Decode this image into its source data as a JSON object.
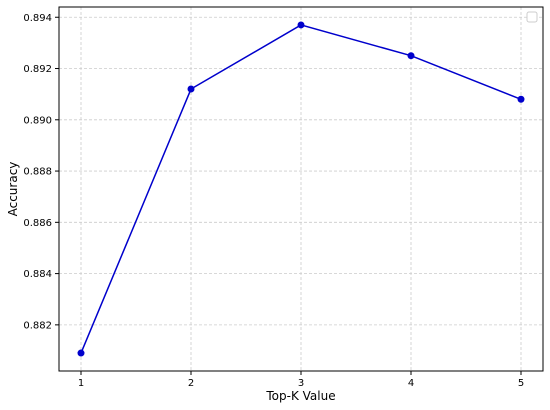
{
  "chart_data": {
    "type": "line",
    "title": "",
    "xlabel": "Top-K Value",
    "ylabel": "Accuracy",
    "x": [
      1,
      2,
      3,
      4,
      5
    ],
    "series": [
      {
        "values": [
          0.8809,
          0.8912,
          0.8937,
          0.8925,
          0.8908
        ],
        "color": "#0000cc",
        "marker": "circle"
      }
    ],
    "xlim": [
      0.8,
      5.2
    ],
    "ylim": [
      0.8802,
      0.8944
    ],
    "xticks": [
      1,
      2,
      3,
      4,
      5
    ],
    "xtick_labels": [
      "1",
      "2",
      "3",
      "4",
      "5"
    ],
    "yticks": [
      0.882,
      0.884,
      0.886,
      0.888,
      0.89,
      0.892,
      0.894
    ],
    "ytick_labels": [
      "0.882",
      "0.884",
      "0.886",
      "0.888",
      "0.890",
      "0.892",
      "0.894"
    ],
    "grid": true,
    "grid_style": "dashed",
    "grid_color": "#cccccc",
    "legend": "empty-box",
    "legend_placement": "top-right"
  }
}
